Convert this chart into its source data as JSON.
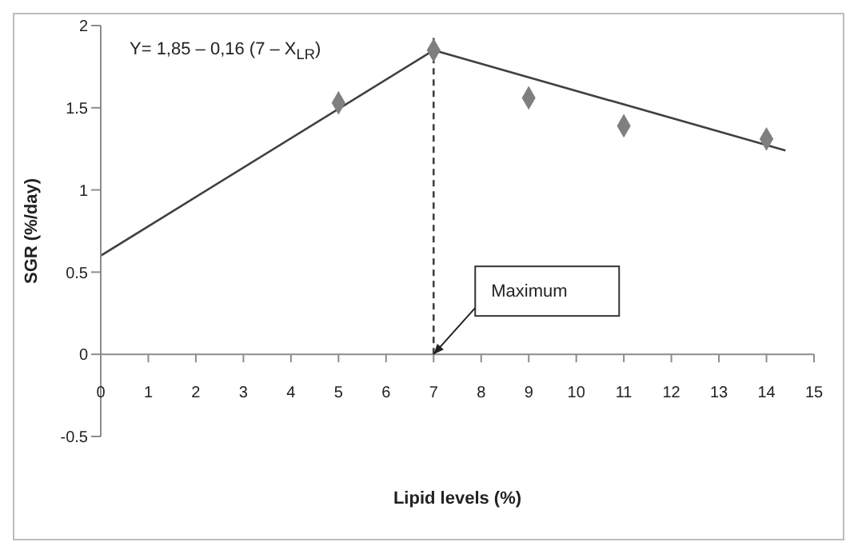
{
  "chart_data": {
    "type": "scatter",
    "xlabel": "Lipid levels (%)",
    "ylabel": "SGR (%/day)",
    "annotations": [
      "Y= 1,85 – 0,16 (7 – X$_{LR}$)",
      {
        "text": "Maximum",
        "x": 7,
        "y": 0
      }
    ],
    "series": [
      {
        "color": "#7f7f7f",
        "marker": "diamond",
        "x": [
          5,
          7,
          9,
          11,
          14
        ],
        "values": [
          1.53,
          1.85,
          1.56,
          1.39,
          1.31
        ]
      },
      {
        "type": "line",
        "color": "#404040",
        "marker": "none",
        "x": [
          0,
          7,
          14.4
        ],
        "values": [
          0.6,
          1.85,
          1.24
        ]
      }
    ],
    "ref_lines": [
      {
        "axis": "x",
        "value": 7,
        "line_style": "dashed",
        "color": "#404040"
      }
    ],
    "xlim": [
      0,
      15
    ],
    "xticks": [
      0,
      1,
      2,
      3,
      4,
      5,
      6,
      7,
      8,
      9,
      10,
      11,
      12,
      13,
      14,
      15
    ],
    "ylim": [
      -0.5,
      2
    ],
    "yticks": [
      -0.5,
      0,
      0.5,
      1,
      1.5,
      2
    ]
  }
}
